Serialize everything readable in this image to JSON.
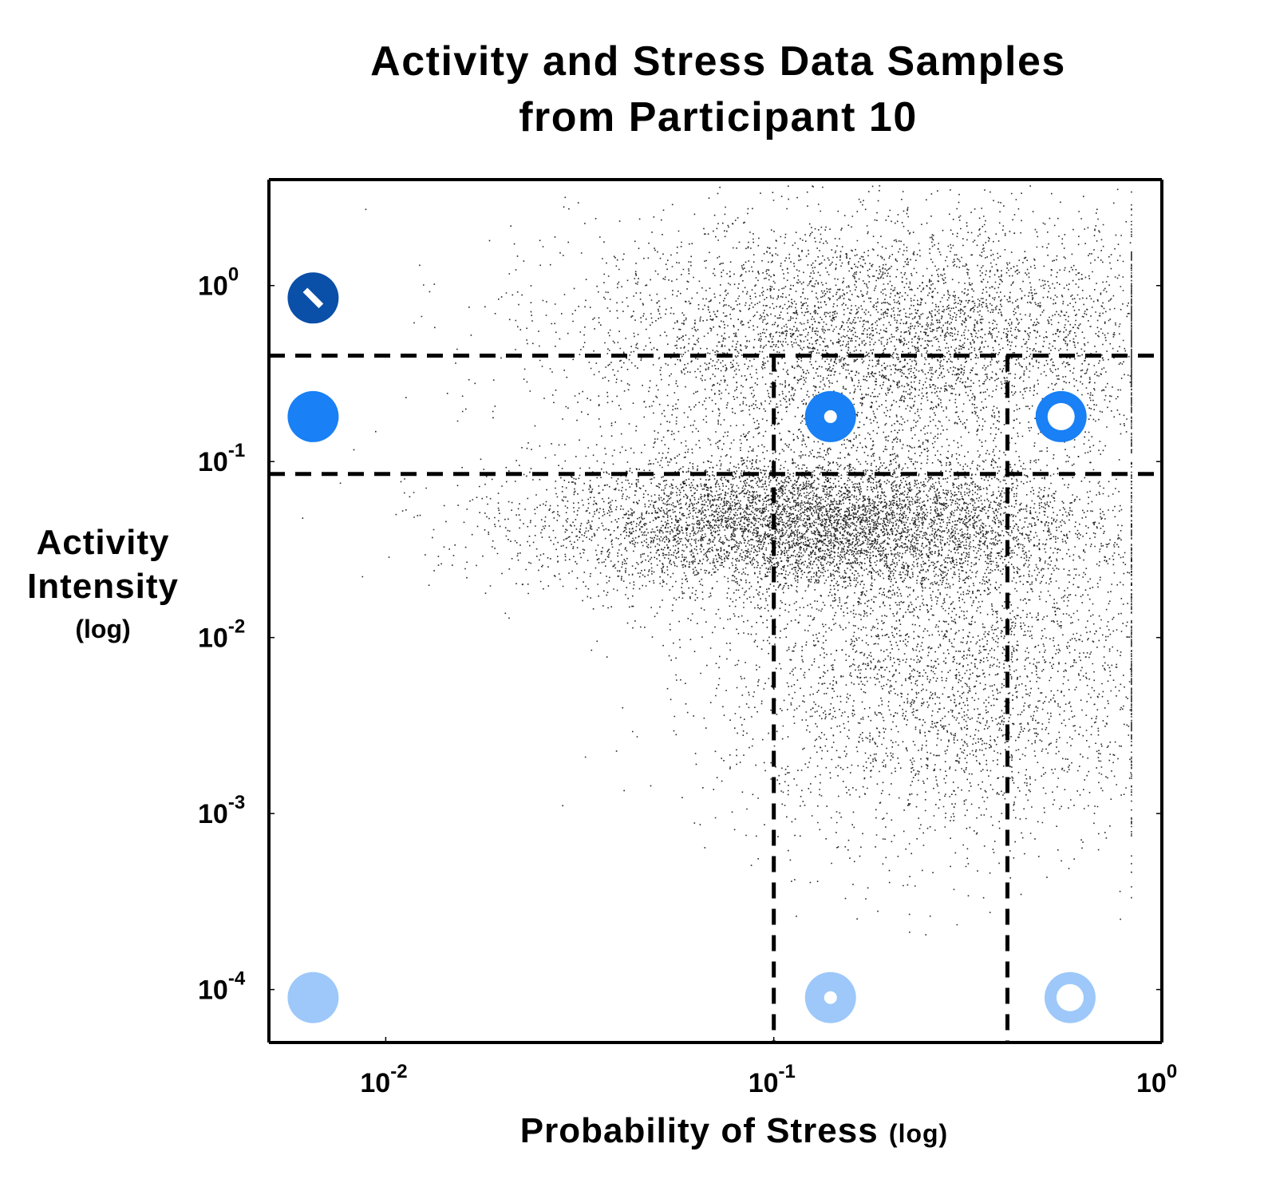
{
  "title_line1": "Activity and Stress Data Samples",
  "title_line2": "from Participant 10",
  "xlabel_main": "Probability of Stress",
  "xlabel_suffix": "(log)",
  "ylabel_line1": "Activity",
  "ylabel_line2": "Intensity",
  "ylabel_line3": "(log)",
  "chart_data": {
    "type": "scatter",
    "xscale": "log",
    "yscale": "log",
    "xlim": [
      0.005,
      1.0
    ],
    "ylim": [
      5e-05,
      4.0
    ],
    "x_ticks": [
      {
        "base": "10",
        "exp": "-2",
        "value": 0.01
      },
      {
        "base": "10",
        "exp": "-1",
        "value": 0.1
      },
      {
        "base": "10",
        "exp": "0",
        "value": 1.0
      }
    ],
    "y_ticks": [
      {
        "base": "10",
        "exp": "0",
        "value": 1.0
      },
      {
        "base": "10",
        "exp": "-1",
        "value": 0.1
      },
      {
        "base": "10",
        "exp": "-2",
        "value": 0.01
      },
      {
        "base": "10",
        "exp": "-3",
        "value": 0.001
      },
      {
        "base": "10",
        "exp": "-4",
        "value": 0.0001
      }
    ],
    "threshold_lines": {
      "x": [
        0.1,
        0.4
      ],
      "y": [
        0.4,
        0.085
      ]
    },
    "markers": [
      {
        "kind": "slash",
        "x": 0.0065,
        "y": 0.85,
        "color": "#0a4fa8"
      },
      {
        "kind": "filled",
        "x": 0.0065,
        "y": 0.18,
        "color": "#1980f5"
      },
      {
        "kind": "ring-small-hole",
        "x": 0.14,
        "y": 0.18,
        "color": "#1980f5"
      },
      {
        "kind": "ring-big-hole",
        "x": 0.55,
        "y": 0.18,
        "color": "#1980f5"
      },
      {
        "kind": "filled",
        "x": 0.0065,
        "y": 9e-05,
        "color": "#9dc8f9"
      },
      {
        "kind": "ring-small-hole",
        "x": 0.14,
        "y": 9e-05,
        "color": "#9dc8f9"
      },
      {
        "kind": "ring-big-hole",
        "x": 0.58,
        "y": 9e-05,
        "color": "#9dc8f9"
      }
    ],
    "point_clusters": [
      {
        "x_log_mean": -0.9,
        "x_log_sd": 0.35,
        "y_log_mean": -1.35,
        "y_log_sd": 0.2,
        "count": 9000
      },
      {
        "x_log_mean": -0.7,
        "x_log_sd": 0.4,
        "y_log_mean": -0.3,
        "y_log_sd": 0.35,
        "count": 6000
      },
      {
        "x_log_mean": -0.55,
        "x_log_sd": 0.3,
        "y_log_mean": -2.2,
        "y_log_sd": 0.5,
        "count": 3500
      }
    ],
    "point_color": "#000000"
  }
}
